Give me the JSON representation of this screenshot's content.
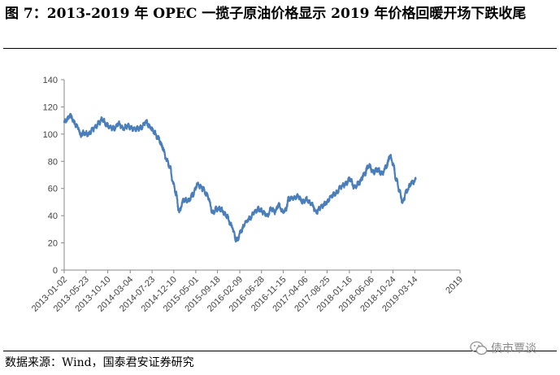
{
  "figure": {
    "title": "图 7：2013-2019 年 OPEC 一揽子原油价格显示 2019 年价格回暖开场下跌收尾",
    "source": "数据来源：Wind，国泰君安证券研究",
    "watermark": "债市覃谈"
  },
  "chart_data": {
    "type": "line",
    "title": "",
    "xlabel": "",
    "ylabel": "",
    "ylim": [
      0,
      140
    ],
    "yticks": [
      0,
      20,
      40,
      60,
      80,
      100,
      120,
      140
    ],
    "xlim": [
      "2013-01-02",
      "2019-12-31"
    ],
    "xticks": [
      "2013-01-02",
      "2013-05-23",
      "2013-10-10",
      "2014-03-04",
      "2014-07-23",
      "2014-12-10",
      "2015-05-01",
      "2015-09-18",
      "2016-02-09",
      "2016-06-28",
      "2016-11-15",
      "2017-04-06",
      "2017-08-25",
      "2018-01-16",
      "2018-06-06",
      "2018-10-24",
      "2019-03-14",
      "2019"
    ],
    "grid": false,
    "legend": "none",
    "line_color": "#4a7ebb",
    "series": [
      {
        "name": "",
        "points": [
          [
            "2013-01-02",
            109
          ],
          [
            "2013-01-25",
            111
          ],
          [
            "2013-02-08",
            114
          ],
          [
            "2013-02-20",
            112
          ],
          [
            "2013-03-08",
            108
          ],
          [
            "2013-04-01",
            105
          ],
          [
            "2013-04-18",
            99
          ],
          [
            "2013-05-10",
            101
          ],
          [
            "2013-06-05",
            100
          ],
          [
            "2013-07-10",
            104
          ],
          [
            "2013-08-15",
            108
          ],
          [
            "2013-09-05",
            111
          ],
          [
            "2013-10-01",
            107
          ],
          [
            "2013-10-25",
            105
          ],
          [
            "2013-11-20",
            104
          ],
          [
            "2013-12-20",
            108
          ],
          [
            "2014-01-15",
            104
          ],
          [
            "2014-02-15",
            106
          ],
          [
            "2014-03-15",
            104
          ],
          [
            "2014-04-15",
            104
          ],
          [
            "2014-05-15",
            105
          ],
          [
            "2014-06-15",
            109
          ],
          [
            "2014-07-10",
            105
          ],
          [
            "2014-08-01",
            102
          ],
          [
            "2014-09-01",
            97
          ],
          [
            "2014-10-01",
            90
          ],
          [
            "2014-10-20",
            82
          ],
          [
            "2014-11-15",
            76
          ],
          [
            "2014-12-05",
            64
          ],
          [
            "2014-12-25",
            56
          ],
          [
            "2015-01-13",
            43
          ],
          [
            "2015-02-15",
            52
          ],
          [
            "2015-03-15",
            51
          ],
          [
            "2015-04-15",
            56
          ],
          [
            "2015-05-10",
            63
          ],
          [
            "2015-06-15",
            60
          ],
          [
            "2015-07-15",
            55
          ],
          [
            "2015-08-20",
            42
          ],
          [
            "2015-09-10",
            45
          ],
          [
            "2015-10-10",
            45
          ],
          [
            "2015-11-15",
            40
          ],
          [
            "2015-12-15",
            33
          ],
          [
            "2016-01-20",
            22
          ],
          [
            "2016-02-20",
            29
          ],
          [
            "2016-03-15",
            35
          ],
          [
            "2016-04-15",
            38
          ],
          [
            "2016-05-15",
            43
          ],
          [
            "2016-06-10",
            45
          ],
          [
            "2016-07-15",
            42
          ],
          [
            "2016-08-05",
            40
          ],
          [
            "2016-08-30",
            45
          ],
          [
            "2016-09-25",
            43
          ],
          [
            "2016-10-15",
            48
          ],
          [
            "2016-11-10",
            43
          ],
          [
            "2016-11-30",
            44
          ],
          [
            "2016-12-20",
            52
          ],
          [
            "2017-01-20",
            53
          ],
          [
            "2017-02-20",
            54
          ],
          [
            "2017-03-20",
            50
          ],
          [
            "2017-04-15",
            52
          ],
          [
            "2017-05-10",
            49
          ],
          [
            "2017-06-20",
            43
          ],
          [
            "2017-07-20",
            47
          ],
          [
            "2017-08-25",
            50
          ],
          [
            "2017-09-25",
            55
          ],
          [
            "2017-10-25",
            57
          ],
          [
            "2017-11-20",
            61
          ],
          [
            "2017-12-20",
            63
          ],
          [
            "2018-01-20",
            67
          ],
          [
            "2018-02-15",
            61
          ],
          [
            "2018-03-20",
            64
          ],
          [
            "2018-04-20",
            70
          ],
          [
            "2018-05-22",
            77
          ],
          [
            "2018-06-20",
            72
          ],
          [
            "2018-07-15",
            74
          ],
          [
            "2018-08-15",
            71
          ],
          [
            "2018-09-15",
            77
          ],
          [
            "2018-10-04",
            84
          ],
          [
            "2018-10-25",
            78
          ],
          [
            "2018-11-15",
            66
          ],
          [
            "2018-12-05",
            58
          ],
          [
            "2018-12-26",
            50
          ],
          [
            "2019-01-20",
            58
          ],
          [
            "2019-02-20",
            64
          ],
          [
            "2019-03-20",
            66
          ]
        ]
      }
    ]
  }
}
